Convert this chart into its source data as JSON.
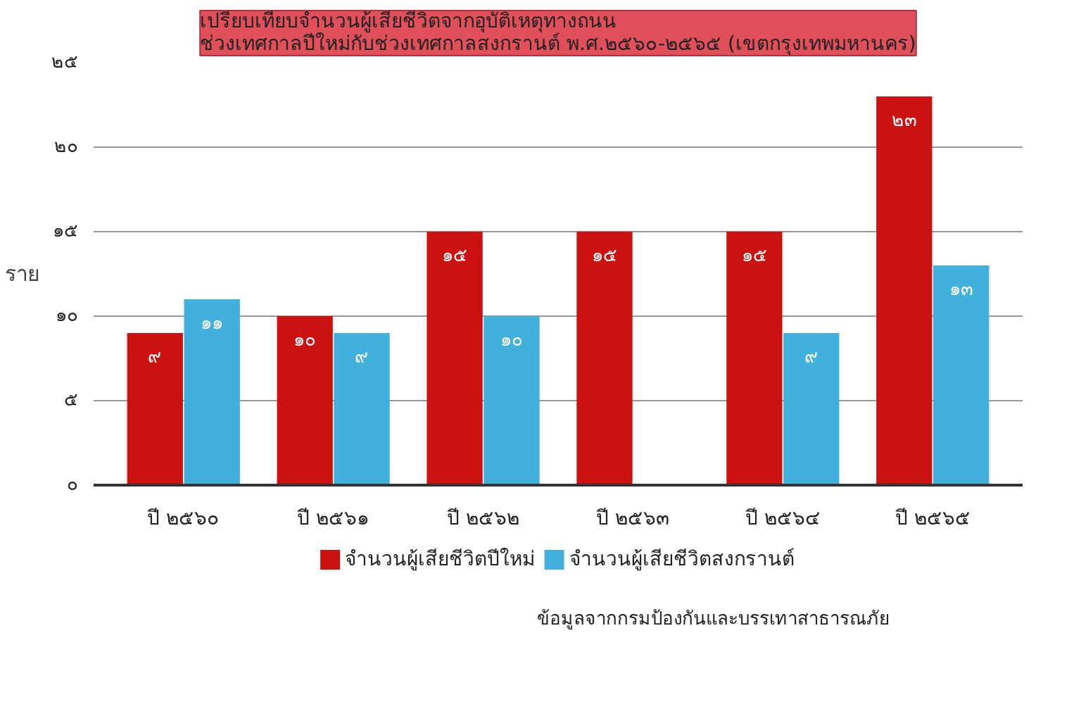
{
  "chart_data": {
    "type": "bar",
    "title": "เปรียบเทียบจำนวนผู้เสียชีวิตจากอุบัติเหตุทางถนน\nช่วงเทศกาลปีใหม่กับช่วงเทศกาลสงกรานต์ พ.ศ.๒๕๖๐-๒๕๖๕ (เขตกรุงเทพมหานคร)",
    "ylabel": "ราย",
    "categories": [
      "ปี ๒๕๖๐",
      "ปี ๒๕๖๑",
      "ปี ๒๕๖๒",
      "ปี ๒๕๖๓",
      "ปี ๒๕๖๔",
      "ปี ๒๕๖๕"
    ],
    "series": [
      {
        "name": "จำนวนผู้เสียชีวิตปีใหม่",
        "color": "#cc1111",
        "values": [
          9,
          10,
          15,
          15,
          15,
          23
        ],
        "value_labels": [
          "๙",
          "๑๐",
          "๑๕",
          "๑๕",
          "๑๕",
          "๒๓"
        ]
      },
      {
        "name": "จำนวนผู้เสียชีวิตสงกรานต์",
        "color": "#41b0dc",
        "values": [
          11,
          9,
          10,
          null,
          9,
          13
        ],
        "value_labels": [
          "๑๑",
          "๙",
          "๑๐",
          null,
          "๙",
          "๑๓"
        ]
      }
    ],
    "ylim": [
      0,
      25
    ],
    "yticks": [
      {
        "value": 0,
        "label": "๐"
      },
      {
        "value": 5,
        "label": "๕"
      },
      {
        "value": 10,
        "label": "๑๐"
      },
      {
        "value": 15,
        "label": "๑๕"
      },
      {
        "value": 20,
        "label": "๒๐"
      },
      {
        "value": 25,
        "label": "๒๕"
      }
    ],
    "grid": "y",
    "legend": "bottom",
    "annotations": [
      "ข้อมูลจากกรมป้องกันและบรรเทาสาธารณภัย"
    ]
  }
}
